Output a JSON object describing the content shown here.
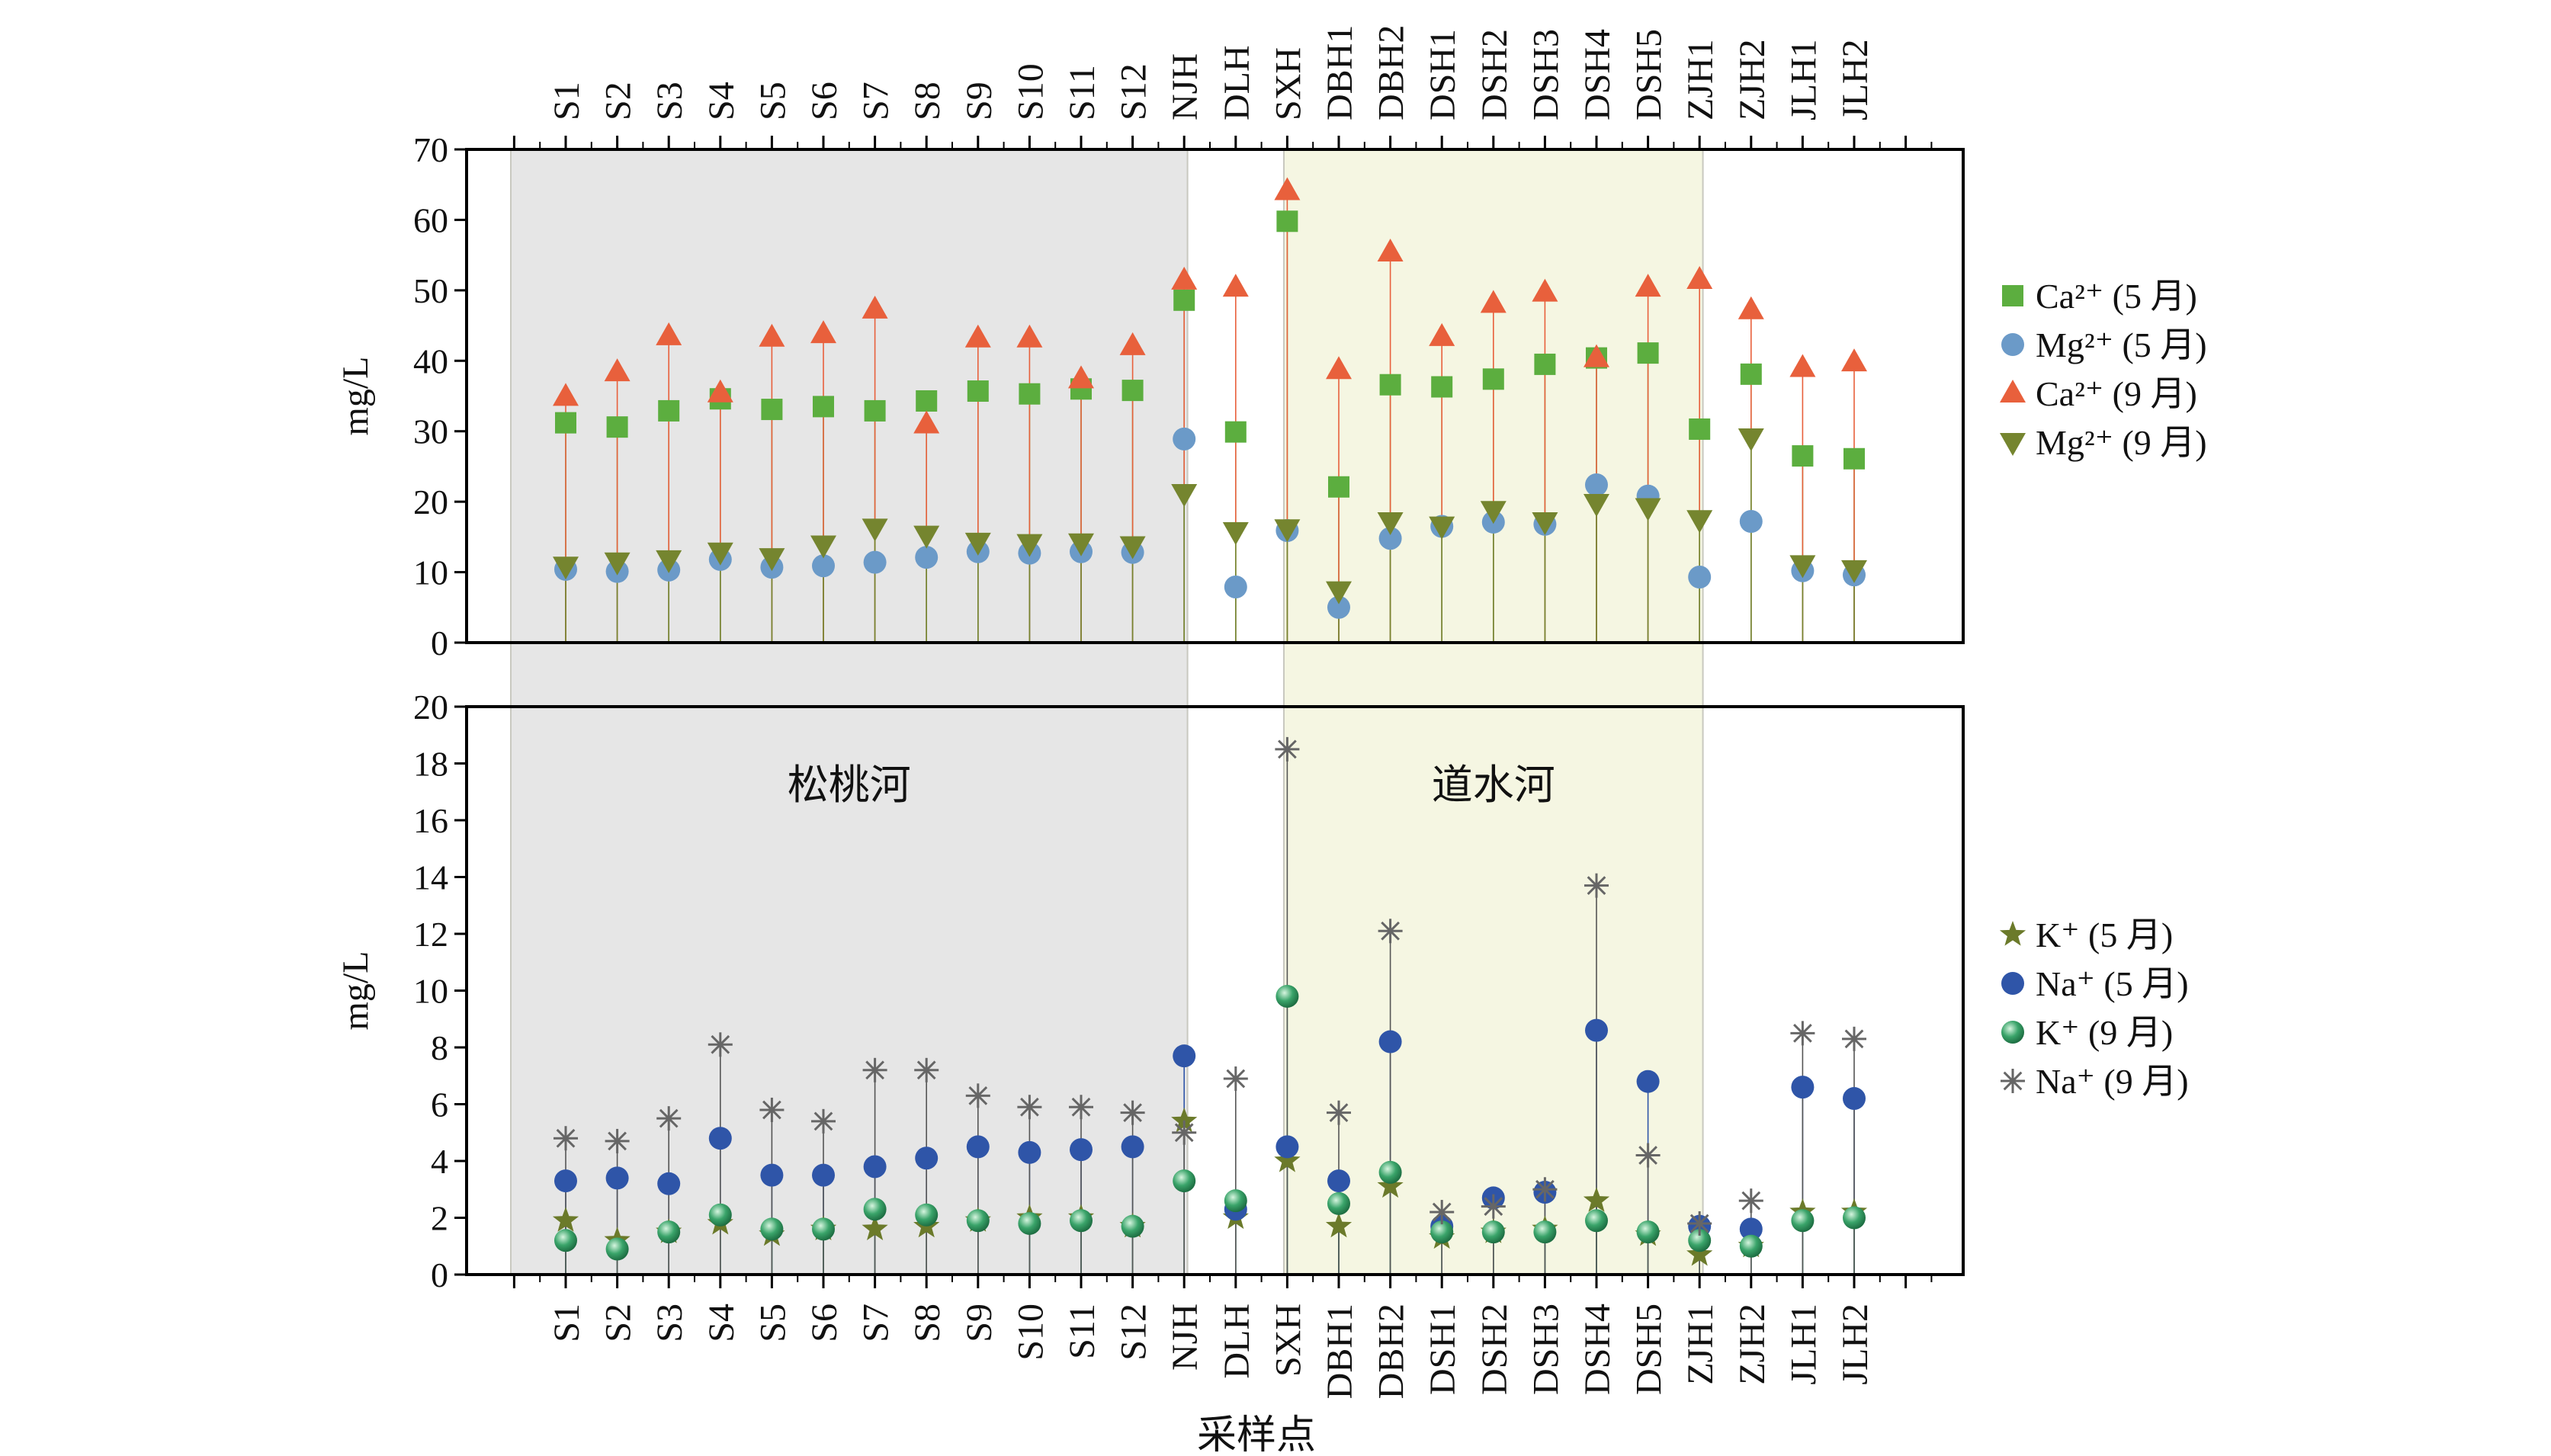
{
  "chart_data": {
    "type": "scatter",
    "categories": [
      "S1",
      "S2",
      "S3",
      "S4",
      "S5",
      "S6",
      "S7",
      "S8",
      "S9",
      "S10",
      "S11",
      "S12",
      "NJH",
      "DLH",
      "SXH",
      "DBH1",
      "DBH2",
      "DSH1",
      "DSH2",
      "DSH3",
      "DSH4",
      "DSH5",
      "ZJH1",
      "ZJH2",
      "JLH1",
      "JLH2"
    ],
    "xlabel": "采样点",
    "regions": [
      {
        "label": "松桃河",
        "start": "S1",
        "end": "S12",
        "color": "#e6e6e6"
      },
      {
        "label": "道水河",
        "start": "DBH1",
        "end": "DSH5",
        "color": "#f5f6e2"
      }
    ],
    "panels": [
      {
        "ylabel": "mg/L",
        "ylim": [
          0,
          70
        ],
        "yticks": [
          0,
          10,
          20,
          30,
          40,
          50,
          60,
          70
        ],
        "series": [
          {
            "name": "Ca²⁺ (5 月)",
            "marker": "square",
            "color": "#5cae3f",
            "values": [
              31.2,
              30.6,
              32.9,
              34.6,
              33.1,
              33.5,
              32.9,
              34.3,
              35.7,
              35.3,
              36.0,
              35.8,
              48.6,
              29.9,
              59.8,
              22.1,
              36.6,
              36.3,
              37.4,
              39.5,
              40.4,
              41.1,
              30.3,
              38.1,
              26.5,
              26.1
            ]
          },
          {
            "name": "Mg²⁺ (5 月)",
            "marker": "circle",
            "color": "#6b9ac8",
            "values": [
              10.4,
              10.1,
              10.3,
              11.8,
              10.7,
              10.9,
              11.4,
              12.1,
              12.9,
              12.7,
              12.9,
              12.8,
              28.9,
              7.9,
              15.9,
              5.0,
              14.8,
              16.5,
              17.1,
              16.8,
              22.4,
              20.8,
              9.3,
              17.2,
              10.2,
              9.6
            ]
          },
          {
            "name": "Ca²⁺ (9 月)",
            "marker": "triangle-up",
            "color": "#e8603c",
            "values": [
              34.9,
              38.4,
              43.5,
              35.4,
              43.3,
              43.8,
              47.3,
              31.0,
              43.2,
              43.2,
              37.4,
              42.1,
              51.4,
              50.4,
              64.1,
              38.7,
              55.4,
              43.4,
              48.1,
              49.7,
              40.4,
              50.4,
              51.5,
              47.2,
              39.0,
              39.8
            ]
          },
          {
            "name": "Mg²⁺ (9 月)",
            "marker": "triangle-down",
            "color": "#75852f",
            "values": [
              10.9,
              11.5,
              11.8,
              12.9,
              12.1,
              13.9,
              16.3,
              15.3,
              14.3,
              14.1,
              14.2,
              13.8,
              21.2,
              15.8,
              16.2,
              7.4,
              17.2,
              16.6,
              18.8,
              17.2,
              19.8,
              19.2,
              17.5,
              29.1,
              11.1,
              10.4
            ]
          }
        ]
      },
      {
        "ylabel": "mg/L",
        "ylim": [
          0,
          20
        ],
        "yticks": [
          0,
          2,
          4,
          6,
          8,
          10,
          12,
          14,
          16,
          18,
          20
        ],
        "series": [
          {
            "name": "K⁺ (5 月)",
            "marker": "star",
            "color": "#6b7a2a",
            "values": [
              1.9,
              1.2,
              1.5,
              1.8,
              1.4,
              1.6,
              1.6,
              1.7,
              1.9,
              2.0,
              2.0,
              1.7,
              5.4,
              2.0,
              4.0,
              1.7,
              3.1,
              1.3,
              1.5,
              1.6,
              2.6,
              1.4,
              0.7,
              1.0,
              2.2,
              2.2
            ]
          },
          {
            "name": "Na⁺ (5 月)",
            "marker": "circle",
            "color": "#2f55a8",
            "values": [
              3.3,
              3.4,
              3.2,
              4.8,
              3.5,
              3.5,
              3.8,
              4.1,
              4.5,
              4.3,
              4.4,
              4.5,
              7.7,
              2.3,
              4.5,
              3.3,
              8.2,
              1.7,
              2.7,
              2.9,
              8.6,
              6.8,
              1.7,
              1.6,
              6.6,
              6.2
            ]
          },
          {
            "name": "K⁺ (9 月)",
            "marker": "sphere",
            "color": "#3aa46a",
            "values": [
              1.2,
              0.9,
              1.5,
              2.1,
              1.6,
              1.6,
              2.3,
              2.1,
              1.9,
              1.8,
              1.9,
              1.7,
              3.3,
              2.6,
              9.8,
              2.5,
              3.6,
              1.5,
              1.5,
              1.5,
              1.9,
              1.5,
              1.2,
              1.0,
              1.9,
              2.0
            ]
          },
          {
            "name": "Na⁺ (9 月)",
            "marker": "asterisk",
            "color": "#666666",
            "values": [
              4.8,
              4.7,
              5.5,
              8.1,
              5.8,
              5.4,
              7.2,
              7.2,
              6.3,
              5.9,
              5.9,
              5.7,
              5.0,
              6.9,
              18.5,
              5.7,
              12.1,
              2.2,
              2.4,
              3.0,
              13.7,
              4.2,
              1.8,
              2.6,
              8.5,
              8.3
            ]
          }
        ]
      }
    ]
  }
}
